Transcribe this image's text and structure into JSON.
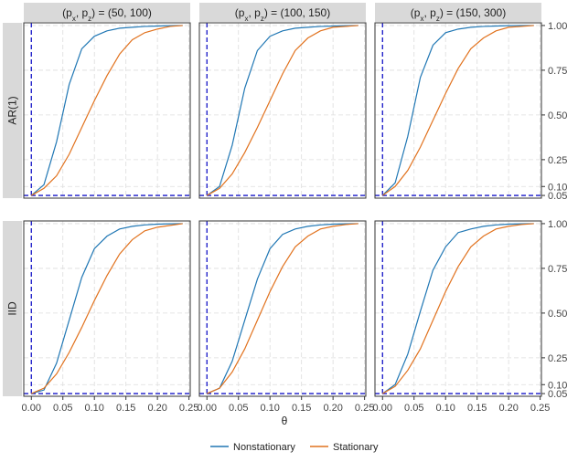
{
  "chart_data": {
    "type": "line",
    "xlabel": "θ",
    "ylabel": "",
    "xlim": [
      -0.012,
      0.252
    ],
    "ylim": [
      0.035,
      1.015
    ],
    "x_ticks": [
      0.0,
      0.05,
      0.1,
      0.15,
      0.2,
      0.25
    ],
    "x_tick_labels": [
      "0.00",
      "0.05",
      "0.10",
      "0.15",
      "0.20",
      "0.25"
    ],
    "y_ticks": [
      0.05,
      0.1,
      0.25,
      0.5,
      0.75,
      1.0
    ],
    "y_tick_labels": [
      "0.05",
      "0.10",
      "0.25",
      "0.50",
      "0.75",
      "1.00"
    ],
    "reference_lines": {
      "vertical_x": 0.0,
      "horizontal_y": 0.05,
      "color": "#1515c8",
      "style": "dashed"
    },
    "grid": true,
    "legend_position": "bottom",
    "col_strips": [
      {
        "open": "(p",
        "s1": "x",
        "comma": ", p",
        "s2": "z",
        "close": ") = (50, 100)"
      },
      {
        "open": "(p",
        "s1": "x",
        "comma": ", p",
        "s2": "z",
        "close": ") = (100, 150)"
      },
      {
        "open": "(p",
        "s1": "x",
        "comma": ", p",
        "s2": "z",
        "close": ") = (150, 300)"
      }
    ],
    "row_strips": [
      "AR(1)",
      "IID"
    ],
    "x": [
      0.0,
      0.02,
      0.04,
      0.06,
      0.08,
      0.1,
      0.12,
      0.14,
      0.16,
      0.18,
      0.2,
      0.22,
      0.24
    ],
    "series_meta": [
      {
        "name": "Nonstationary",
        "color": "#2077b4"
      },
      {
        "name": "Stationary",
        "color": "#e1721e"
      }
    ],
    "panels": [
      {
        "row": 0,
        "col": 0,
        "series": [
          {
            "name": "Nonstationary",
            "values": [
              0.05,
              0.11,
              0.35,
              0.67,
              0.87,
              0.94,
              0.97,
              0.985,
              0.99,
              0.995,
              0.997,
              0.999,
              1.0
            ]
          },
          {
            "name": "Stationary",
            "values": [
              0.05,
              0.09,
              0.16,
              0.28,
              0.43,
              0.58,
              0.72,
              0.84,
              0.92,
              0.96,
              0.98,
              0.995,
              1.0
            ]
          }
        ]
      },
      {
        "row": 0,
        "col": 1,
        "series": [
          {
            "name": "Nonstationary",
            "values": [
              0.05,
              0.1,
              0.33,
              0.65,
              0.86,
              0.94,
              0.97,
              0.985,
              0.99,
              0.995,
              0.997,
              0.999,
              1.0
            ]
          },
          {
            "name": "Stationary",
            "values": [
              0.05,
              0.09,
              0.17,
              0.29,
              0.43,
              0.58,
              0.73,
              0.86,
              0.93,
              0.97,
              0.99,
              0.995,
              1.0
            ]
          }
        ]
      },
      {
        "row": 0,
        "col": 2,
        "series": [
          {
            "name": "Nonstationary",
            "values": [
              0.05,
              0.12,
              0.38,
              0.71,
              0.89,
              0.96,
              0.98,
              0.99,
              0.995,
              0.997,
              0.999,
              1.0,
              1.0
            ]
          },
          {
            "name": "Stationary",
            "values": [
              0.05,
              0.1,
              0.19,
              0.32,
              0.47,
              0.62,
              0.76,
              0.87,
              0.93,
              0.97,
              0.99,
              0.995,
              1.0
            ]
          }
        ]
      },
      {
        "row": 1,
        "col": 0,
        "series": [
          {
            "name": "Nonstationary",
            "values": [
              0.05,
              0.07,
              0.22,
              0.46,
              0.7,
              0.86,
              0.93,
              0.97,
              0.985,
              0.993,
              0.997,
              0.999,
              1.0
            ]
          },
          {
            "name": "Stationary",
            "values": [
              0.05,
              0.08,
              0.16,
              0.28,
              0.42,
              0.57,
              0.71,
              0.83,
              0.91,
              0.96,
              0.98,
              0.99,
              1.0
            ]
          }
        ]
      },
      {
        "row": 1,
        "col": 1,
        "series": [
          {
            "name": "Nonstationary",
            "values": [
              0.05,
              0.08,
              0.23,
              0.46,
              0.69,
              0.86,
              0.94,
              0.97,
              0.985,
              0.993,
              0.997,
              0.999,
              1.0
            ]
          },
          {
            "name": "Stationary",
            "values": [
              0.05,
              0.08,
              0.17,
              0.3,
              0.46,
              0.62,
              0.76,
              0.87,
              0.93,
              0.97,
              0.985,
              0.995,
              1.0
            ]
          }
        ]
      },
      {
        "row": 1,
        "col": 2,
        "series": [
          {
            "name": "Nonstationary",
            "values": [
              0.05,
              0.1,
              0.27,
              0.51,
              0.74,
              0.87,
              0.95,
              0.97,
              0.985,
              0.993,
              0.997,
              0.999,
              1.0
            ]
          },
          {
            "name": "Stationary",
            "values": [
              0.05,
              0.09,
              0.18,
              0.3,
              0.46,
              0.62,
              0.76,
              0.87,
              0.93,
              0.97,
              0.985,
              0.995,
              1.0
            ]
          }
        ]
      }
    ]
  }
}
